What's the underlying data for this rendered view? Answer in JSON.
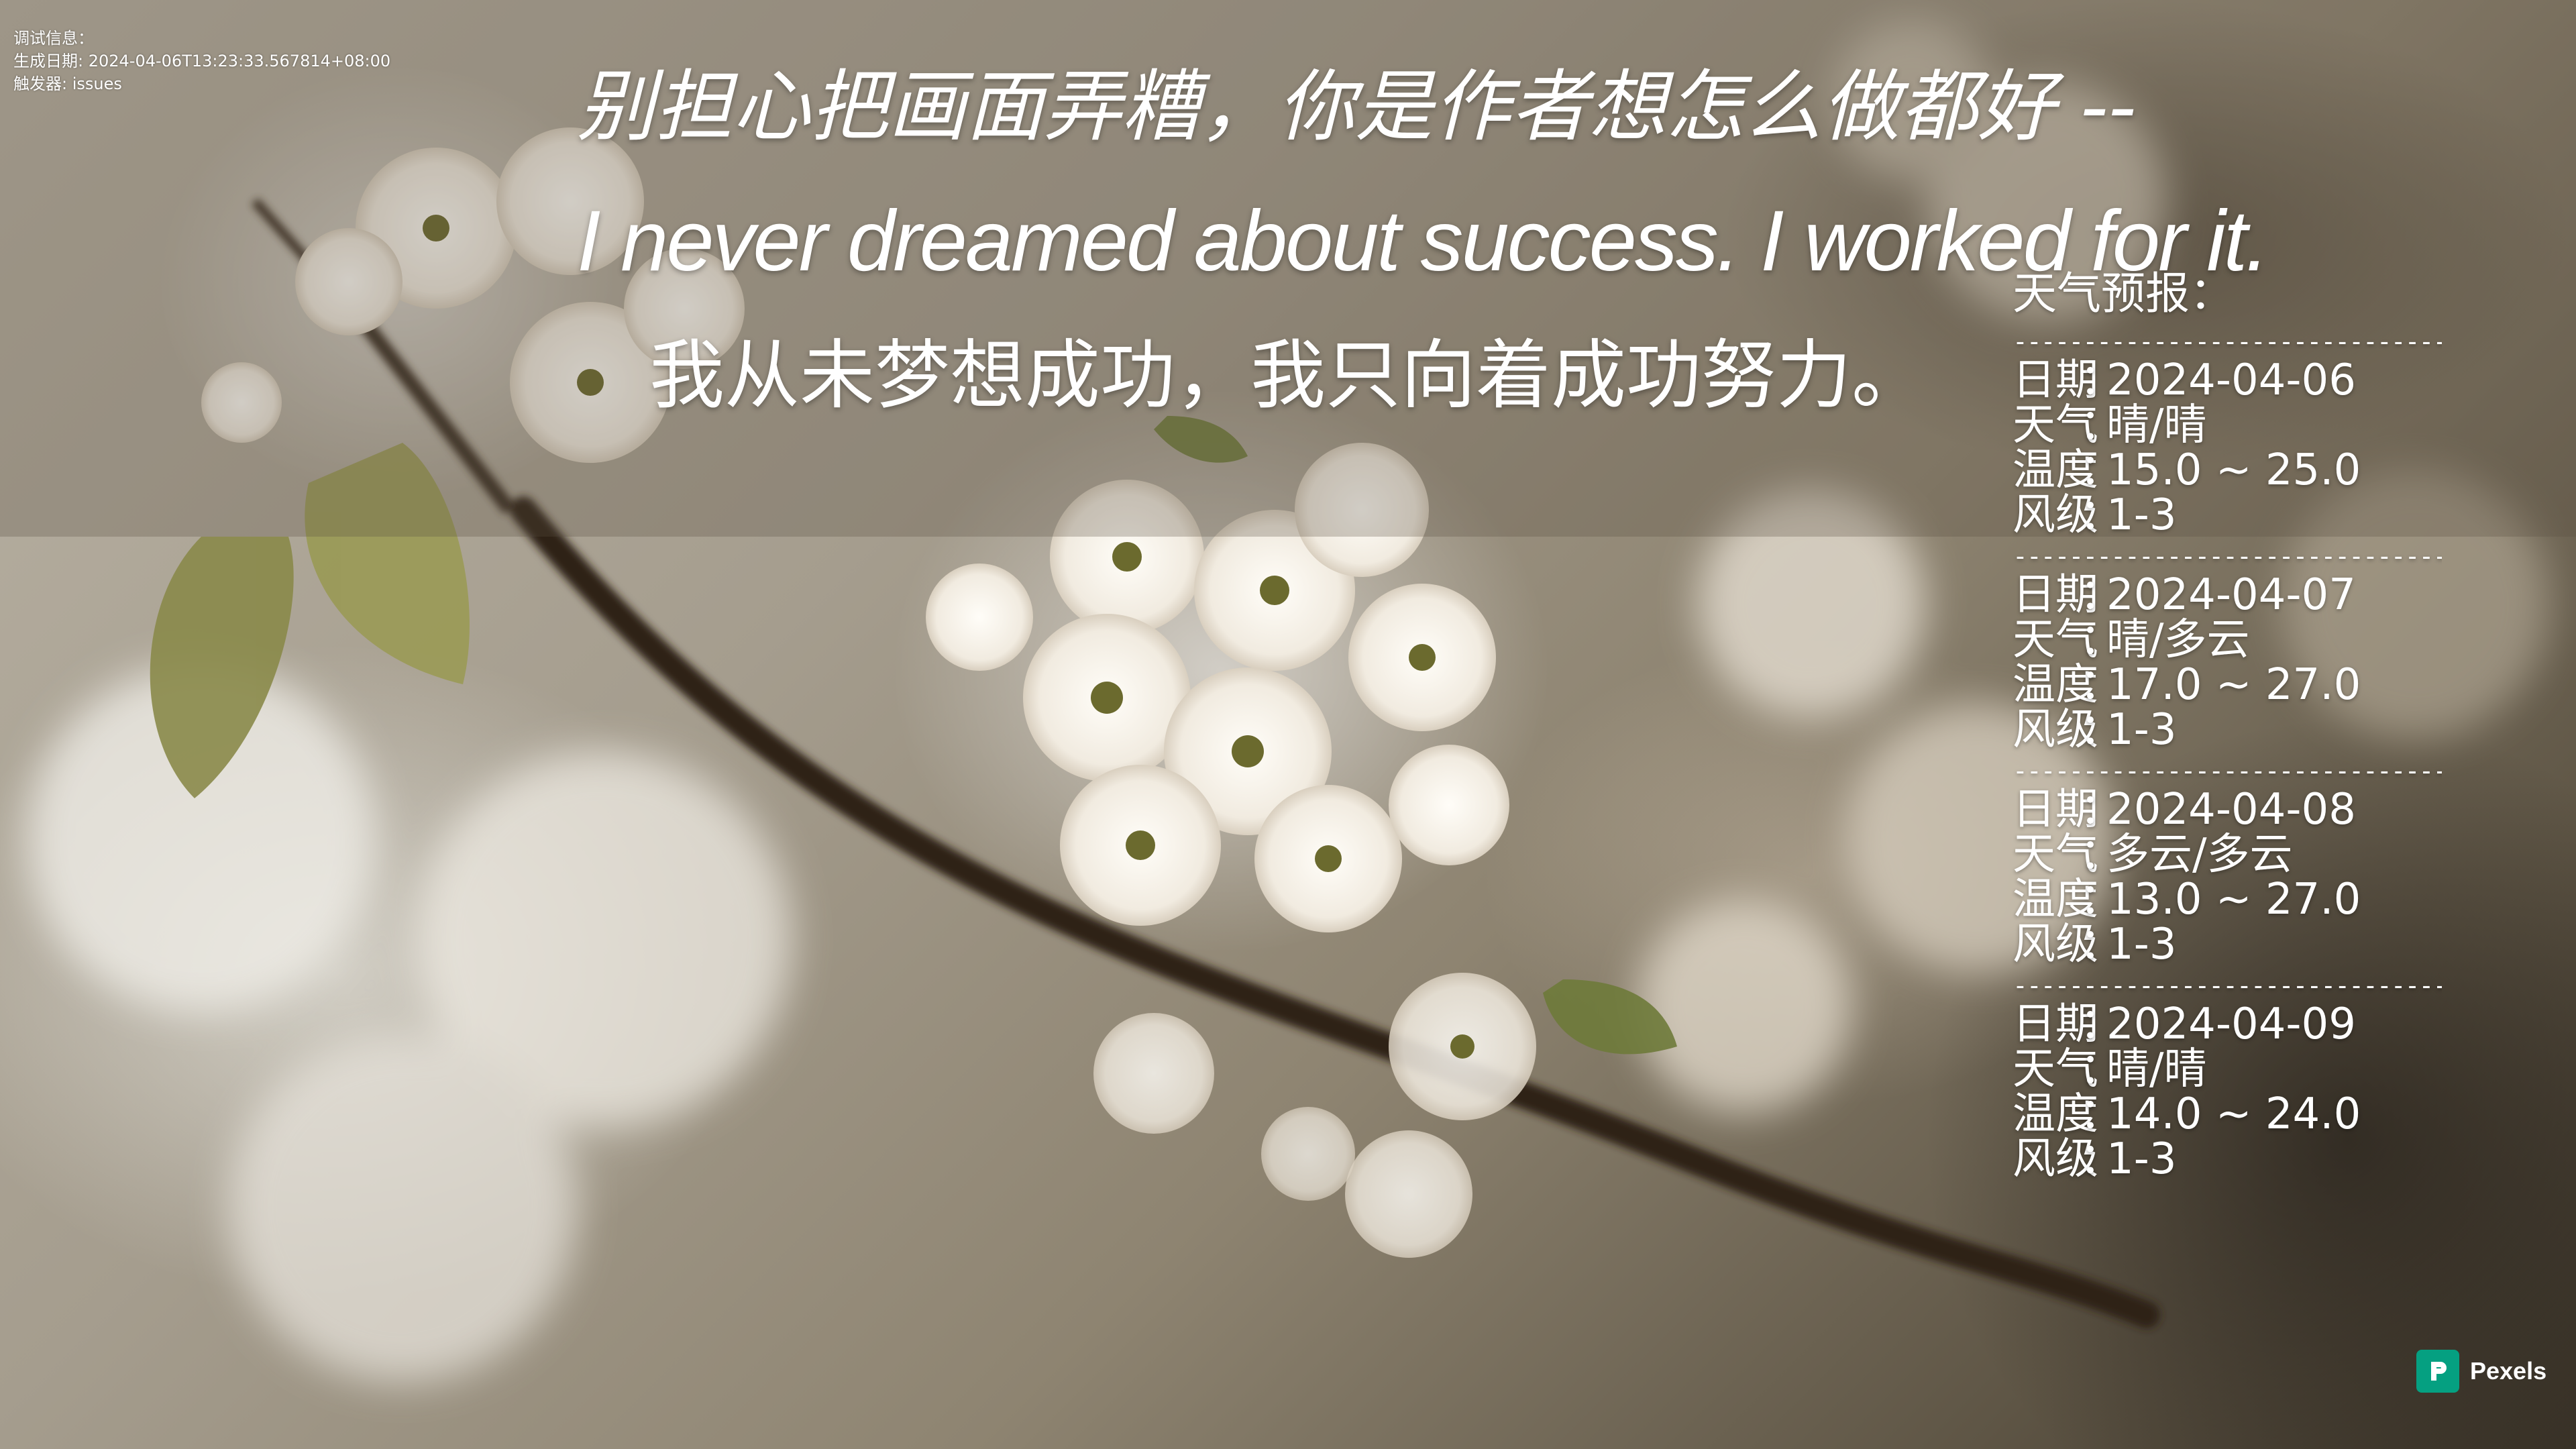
{
  "debug": {
    "line1": "调试信息：",
    "line2": "生成日期: 2024-04-06T13:23:33.567814+08:00",
    "line3": "触发器: issues"
  },
  "quote": {
    "line1": "别担心把画面弄糟，你是作者想怎么做都好   --",
    "line2": "I never dreamed about success. I worked for it.",
    "line3": "我从未梦想成功，我只向着成功努力。"
  },
  "weather": {
    "title": "天气预报：",
    "separator": "--------------------------------",
    "labels": {
      "date": "日期",
      "weather": "天气",
      "temperature": "温度",
      "wind": "风级",
      "colon": "："
    },
    "days": [
      {
        "date": "2024-04-06",
        "weather": "晴/晴",
        "temperature": "15.0 ~ 25.0",
        "wind": "1-3"
      },
      {
        "date": "2024-04-07",
        "weather": "晴/多云",
        "temperature": "17.0 ~ 27.0",
        "wind": "1-3"
      },
      {
        "date": "2024-04-08",
        "weather": "多云/多云",
        "temperature": "13.0 ~ 27.0",
        "wind": "1-3"
      },
      {
        "date": "2024-04-09",
        "weather": "晴/晴",
        "temperature": "14.0 ~ 24.0",
        "wind": "1-3"
      }
    ]
  },
  "watermark": {
    "label": "Pexels",
    "icon": "pexels-logo-icon",
    "color": "#05a081"
  }
}
